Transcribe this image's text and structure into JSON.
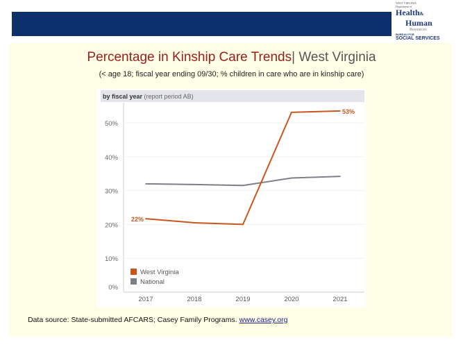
{
  "header": {
    "logo_text": "West Virginia Department of Health & Human Resources Bureau for Social Services"
  },
  "slide": {
    "title_main": "Percentage in Kinship Care Trends",
    "title_sep": "| ",
    "title_state": "West Virginia",
    "subtitle": "(< age 18; fiscal year ending 09/30; % children in care who are in kinship care)",
    "source_text": "Data source: State-submitted AFCARS; Casey Family Programs. ",
    "source_link": "www.casey.org"
  },
  "chart_data": {
    "type": "line",
    "header_bold": "by fiscal year",
    "header_note": "(report period AB)",
    "categories": [
      "2017",
      "2018",
      "2019",
      "2020",
      "2021"
    ],
    "y_ticks": [
      "0%",
      "10%",
      "20%",
      "30%",
      "40%",
      "50%"
    ],
    "ylim": [
      0,
      55
    ],
    "grid": true,
    "legend": "bottom-left",
    "series": [
      {
        "name": "West Virginia",
        "color": "#c8561a",
        "values": [
          21.7,
          20.5,
          20.0,
          53.1,
          53.5
        ],
        "labels": [
          "22%",
          "",
          "",
          "",
          "53%"
        ]
      },
      {
        "name": "National",
        "color": "#7b8088",
        "values": [
          32.0,
          31.8,
          31.5,
          33.7,
          34.2
        ],
        "labels": [
          "",
          "",
          "",
          "",
          ""
        ]
      }
    ]
  }
}
